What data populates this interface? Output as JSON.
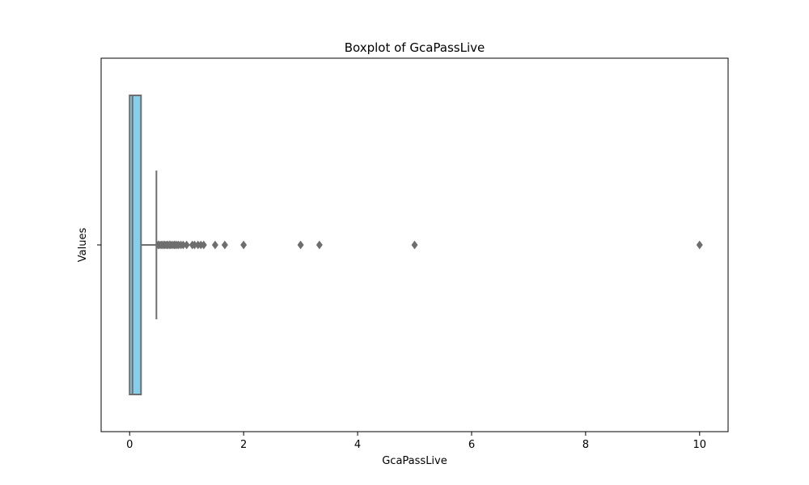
{
  "chart_data": {
    "type": "boxplot",
    "title": "Boxplot of GcaPassLive",
    "xlabel": "GcaPassLive",
    "ylabel": "Values",
    "xlim": [
      -0.5,
      10.5
    ],
    "xticks": [
      0,
      2,
      4,
      6,
      8,
      10
    ],
    "yticks": [
      ""
    ],
    "grid": false,
    "orientation": "horizontal",
    "box": {
      "min": 0.0,
      "q1": 0.0,
      "median": 0.05,
      "q3": 0.2,
      "whisker_low": 0.0,
      "whisker_high": 0.47
    },
    "outliers": [
      0.5,
      0.52,
      0.55,
      0.57,
      0.6,
      0.62,
      0.65,
      0.67,
      0.7,
      0.72,
      0.75,
      0.78,
      0.8,
      0.83,
      0.86,
      0.9,
      0.94,
      1.0,
      1.1,
      1.14,
      1.2,
      1.25,
      1.3,
      1.5,
      1.67,
      2.0,
      3.0,
      3.33,
      5.0,
      10.0
    ],
    "colors": {
      "box_fill": "#87ceeb",
      "lines": "#6e6e6e",
      "outlier": "#6e6e6e",
      "axes": "#000000"
    }
  }
}
